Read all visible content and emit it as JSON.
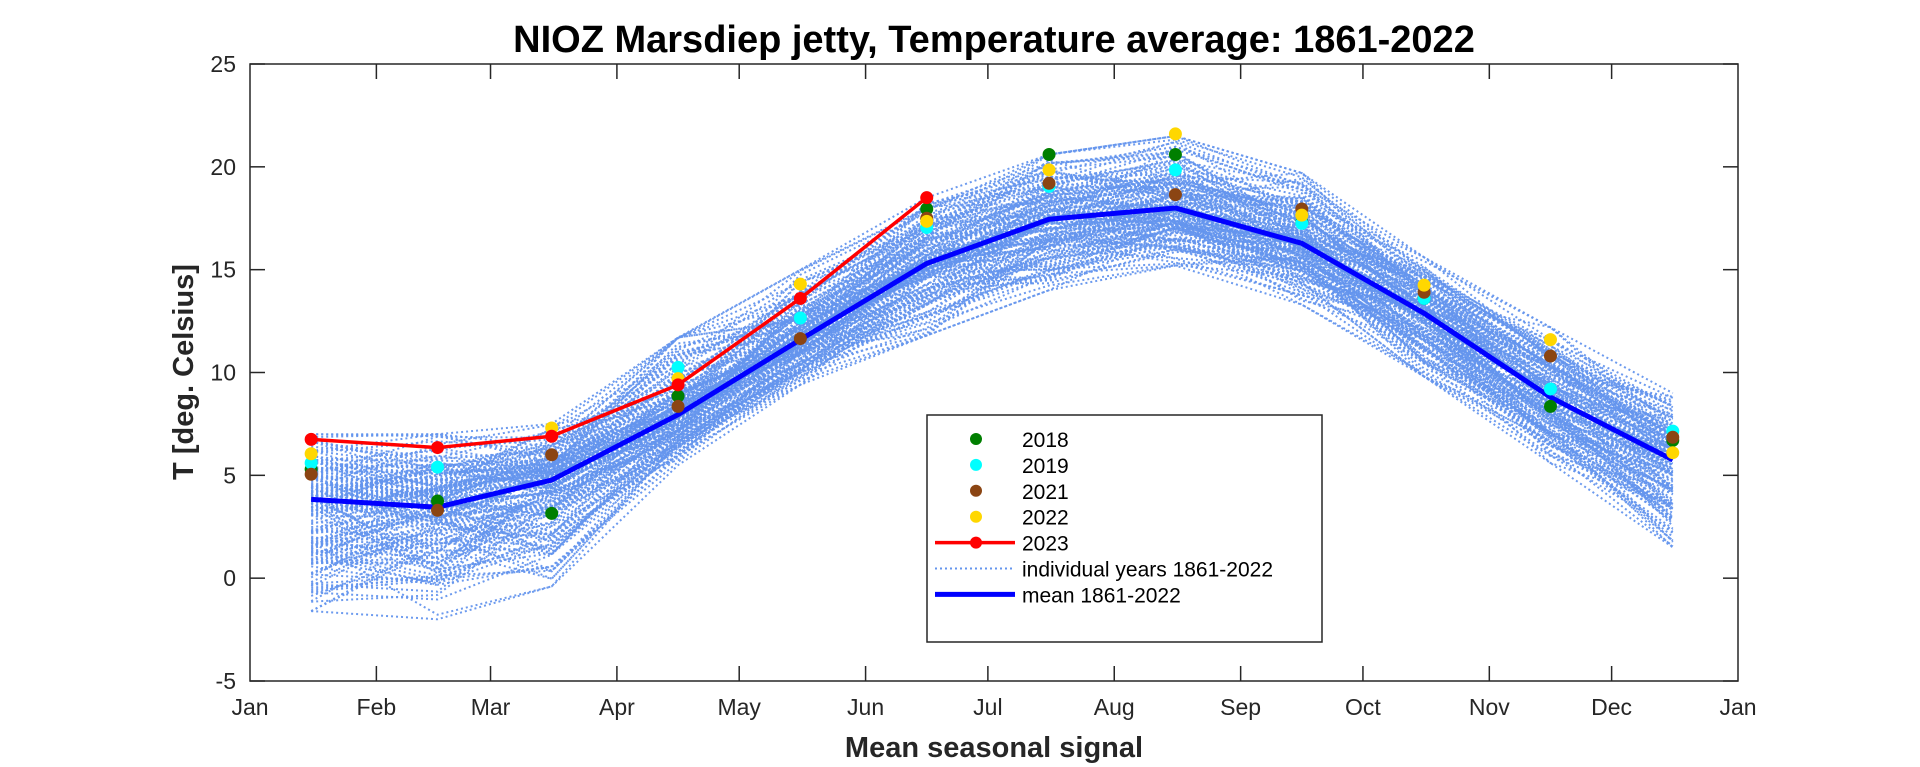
{
  "chart_data": {
    "type": "line",
    "title": "NIOZ Marsdiep jetty, Temperature average: 1861-2022",
    "xlabel": "Mean seasonal signal",
    "ylabel": "T [deg. Celsius]",
    "xlim_days": [
      0,
      365
    ],
    "ylim": [
      -5,
      25
    ],
    "yticks": [
      -5,
      0,
      5,
      10,
      15,
      20,
      25
    ],
    "xtick_labels": [
      "Jan",
      "Feb",
      "Mar",
      "Apr",
      "May",
      "Jun",
      "Jul",
      "Aug",
      "Sep",
      "Oct",
      "Nov",
      "Dec",
      "Jan"
    ],
    "xtick_days": [
      0,
      31,
      59,
      90,
      120,
      151,
      181,
      212,
      243,
      273,
      304,
      334,
      365
    ],
    "grid": false,
    "legend_position": "lower-center",
    "point_months": [
      "Jan",
      "Feb",
      "Mar",
      "Apr",
      "May",
      "Jun",
      "Jul",
      "Aug",
      "Sep",
      "Oct",
      "Nov",
      "Dec"
    ],
    "point_days": [
      15,
      46,
      74,
      105,
      135,
      166,
      196,
      227,
      258,
      288,
      319,
      349
    ],
    "series": [
      {
        "name": "2018",
        "kind": "markers",
        "color": "#007f00",
        "values": [
          5.3,
          3.75,
          3.15,
          8.85,
          null,
          17.95,
          20.6,
          20.6,
          17.3,
          13.6,
          8.35,
          6.7
        ]
      },
      {
        "name": "2019",
        "kind": "markers",
        "color": "#00ffff",
        "values": [
          5.6,
          5.4,
          null,
          10.25,
          12.65,
          17.05,
          19.05,
          19.85,
          17.25,
          13.6,
          9.2,
          7.15
        ]
      },
      {
        "name": "2021",
        "kind": "markers",
        "color": "#8b4513",
        "values": [
          5.05,
          3.3,
          6.0,
          8.35,
          11.65,
          17.5,
          19.2,
          18.65,
          17.95,
          13.9,
          10.8,
          6.85
        ]
      },
      {
        "name": "2022",
        "kind": "markers",
        "color": "#ffd700",
        "values": [
          6.05,
          null,
          7.3,
          9.7,
          14.3,
          17.35,
          19.85,
          21.6,
          17.65,
          14.25,
          11.6,
          6.1
        ]
      },
      {
        "name": "2023",
        "kind": "line-markers",
        "color": "#ff0000",
        "values": [
          6.75,
          6.35,
          6.9,
          9.4,
          13.6,
          18.5,
          null,
          null,
          null,
          null,
          null,
          null
        ]
      },
      {
        "name": "individual years 1861-2022",
        "kind": "dotted-ensemble",
        "color": "#6495ed",
        "count": 162,
        "envelope_min": [
          -1.6,
          -2.0,
          -0.4,
          5.5,
          9.4,
          11.8,
          14.0,
          15.2,
          13.3,
          9.8,
          5.6,
          1.5
        ],
        "envelope_max": [
          7.0,
          7.0,
          7.5,
          11.7,
          15.0,
          18.5,
          20.6,
          21.5,
          19.7,
          15.6,
          12.2,
          9.0
        ]
      },
      {
        "name": "mean 1861-2022",
        "kind": "line",
        "color": "#0000ff",
        "values": [
          3.83,
          3.45,
          4.77,
          7.95,
          11.6,
          15.3,
          17.45,
          18.0,
          16.28,
          12.88,
          8.8,
          5.75
        ]
      }
    ]
  },
  "legend": {
    "items": [
      {
        "label": "2018",
        "color": "#007f00",
        "style": "marker"
      },
      {
        "label": "2019",
        "color": "#00ffff",
        "style": "marker"
      },
      {
        "label": "2021",
        "color": "#8b4513",
        "style": "marker"
      },
      {
        "label": "2022",
        "color": "#ffd700",
        "style": "marker"
      },
      {
        "label": "2023",
        "color": "#ff0000",
        "style": "line-marker"
      },
      {
        "label": "individual years 1861-2022",
        "color": "#6495ed",
        "style": "dotted"
      },
      {
        "label": "mean 1861-2022",
        "color": "#0000ff",
        "style": "thick"
      }
    ]
  }
}
